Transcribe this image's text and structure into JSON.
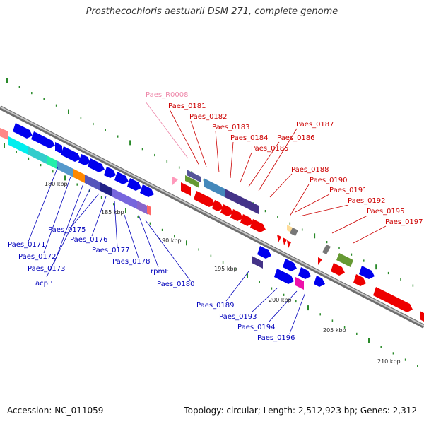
{
  "title": "Prosthecochloris aestuarii DSM 271, complete genome",
  "footer": {
    "accession": "Accession: NC_011059",
    "topology": "Topology: circular; Length: 2,512,923 bp; Genes: 2,312"
  },
  "colors": {
    "forward_label": "#cc0000",
    "reverse_label": "#0000bb",
    "rna_label": "#ee88aa"
  },
  "scale_labels": [
    {
      "text": "180 kbp"
    },
    {
      "text": "185 kbp"
    },
    {
      "text": "190 kbp"
    },
    {
      "text": "195 kbp"
    },
    {
      "text": "200 kbp"
    },
    {
      "text": "205 kbp"
    },
    {
      "text": "210 kbp"
    }
  ],
  "genes_top": [
    {
      "text": "Paes_R0008"
    },
    {
      "text": "Paes_0181"
    },
    {
      "text": "Paes_0182"
    },
    {
      "text": "Paes_0183"
    },
    {
      "text": "Paes_0184"
    },
    {
      "text": "Paes_0185"
    },
    {
      "text": "Paes_0186"
    },
    {
      "text": "Paes_0187"
    },
    {
      "text": "Paes_0188"
    },
    {
      "text": "Paes_0190"
    },
    {
      "text": "Paes_0191"
    },
    {
      "text": "Paes_0192"
    },
    {
      "text": "Paes_0195"
    },
    {
      "text": "Paes_0197"
    }
  ],
  "genes_bottom": [
    {
      "text": "Paes_0171"
    },
    {
      "text": "Paes_0172"
    },
    {
      "text": "Paes_0173"
    },
    {
      "text": "acpP"
    },
    {
      "text": "Paes_0175"
    },
    {
      "text": "Paes_0176"
    },
    {
      "text": "Paes_0177"
    },
    {
      "text": "Paes_0178"
    },
    {
      "text": "rpmF"
    },
    {
      "text": "Paes_0180"
    },
    {
      "text": "Paes_0189"
    },
    {
      "text": "Paes_0193"
    },
    {
      "text": "Paes_0194"
    },
    {
      "text": "Paes_0196"
    }
  ]
}
